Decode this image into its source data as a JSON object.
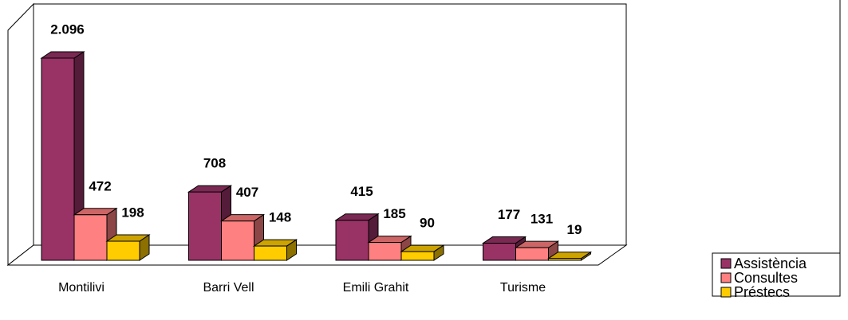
{
  "chart_data": {
    "type": "bar3d",
    "categories": [
      "Montilivi",
      "Barri Vell",
      "Emili Grahit",
      "Turisme"
    ],
    "series": [
      {
        "name": "Assistència",
        "color": "#993366",
        "values": [
          2096,
          708,
          415,
          177
        ],
        "value_labels": [
          "2.096",
          "708",
          "415",
          "177"
        ]
      },
      {
        "name": "Consultes",
        "color": "#FF8080",
        "values": [
          472,
          407,
          185,
          131
        ]
      },
      {
        "name": "Préstecs",
        "color": "#FFCC00",
        "values": [
          198,
          148,
          90,
          19
        ]
      }
    ],
    "legend": "right"
  }
}
